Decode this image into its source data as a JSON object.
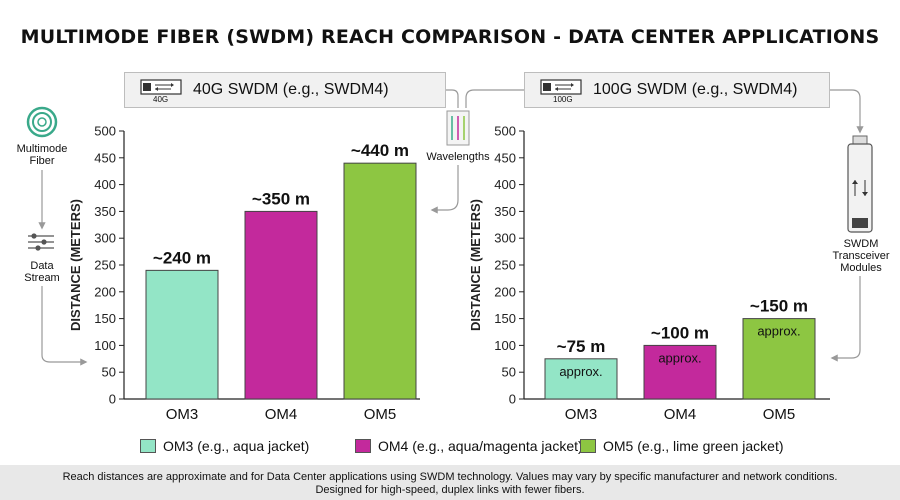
{
  "title": "MULTIMODE FIBER (SWDM) REACH COMPARISON - DATA CENTER APPLICATIONS",
  "modules": {
    "left": {
      "label": "40G SWDM (e.g., SWDM4)",
      "icon_text": "40G"
    },
    "right": {
      "label": "100G SWDM (e.g., SWDM4)",
      "icon_text": "100G"
    }
  },
  "side_labels": {
    "fiber": "Multimode Fiber",
    "stream": "Data Stream",
    "wavelengths": "Wavelengths",
    "transceiver": "SWDM Transceiver Modules"
  },
  "legend": [
    {
      "label": "OM3 (e.g., aqua jacket)",
      "color": "#93e5c6"
    },
    {
      "label": "OM4 (e.g., aqua/magenta jacket)",
      "color": "#c3299c"
    },
    {
      "label": "OM5 (e.g., lime green jacket)",
      "color": "#8dc642"
    }
  ],
  "footer": {
    "line1": "Reach distances are approximate and for Data Center applications using SWDM technology. Values may vary by specific manufacturer and network conditions.",
    "line2": "Designed for high-speed, duplex links with fewer fibers."
  },
  "chart_data": [
    {
      "type": "bar",
      "title": "40G SWDM (e.g., SWDM4)",
      "categories": [
        "OM3",
        "OM4",
        "OM5"
      ],
      "values": [
        240,
        350,
        440
      ],
      "data_labels": [
        "~240 m",
        "~350 m",
        "~440 m"
      ],
      "inner_labels": [
        "",
        "",
        ""
      ],
      "colors": [
        "#93e5c6",
        "#c3299c",
        "#8dc642"
      ],
      "ylabel": "DISTANCE (METERS)",
      "ylim": [
        0,
        500
      ],
      "yticks": [
        0,
        50,
        100,
        150,
        200,
        250,
        300,
        350,
        400,
        450,
        500
      ],
      "grid": false
    },
    {
      "type": "bar",
      "title": "100G SWDM (e.g., SWDM4)",
      "categories": [
        "OM3",
        "OM4",
        "OM5"
      ],
      "values": [
        75,
        100,
        150
      ],
      "data_labels": [
        "~75 m",
        "~100 m",
        "~150 m"
      ],
      "inner_labels": [
        "approx.",
        "approx.",
        "approx."
      ],
      "colors": [
        "#93e5c6",
        "#c3299c",
        "#8dc642"
      ],
      "ylabel": "DISTANCE (METERS)",
      "ylim": [
        0,
        500
      ],
      "yticks": [
        0,
        50,
        100,
        150,
        200,
        250,
        300,
        350,
        400,
        450,
        500
      ],
      "grid": false
    }
  ]
}
